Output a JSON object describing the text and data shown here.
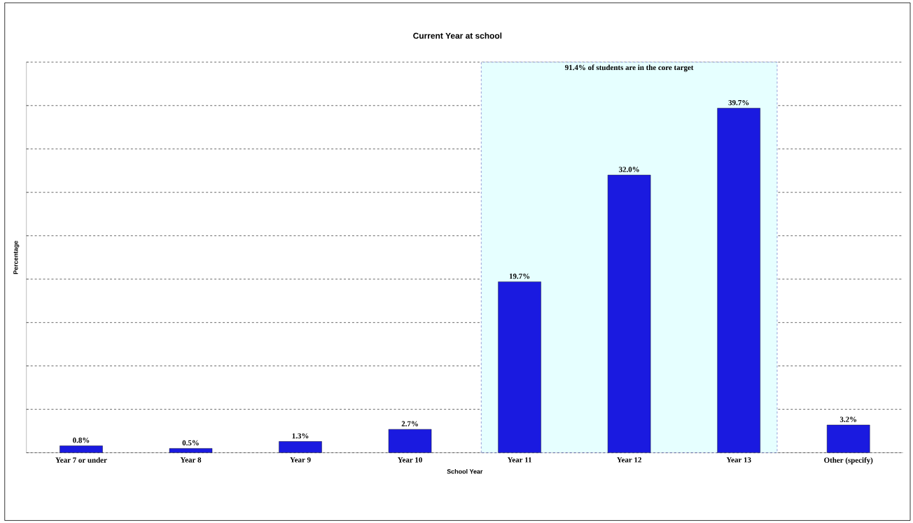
{
  "chart_data": {
    "type": "bar",
    "title": "Current Year at school",
    "xlabel": "School Year",
    "ylabel": "Percentage",
    "categories": [
      "Year 7 or under",
      "Year 8",
      "Year 9",
      "Year 10",
      "Year 11",
      "Year 12",
      "Year 13",
      "Other (specify)"
    ],
    "values": [
      0.8,
      0.5,
      1.3,
      2.7,
      19.7,
      32.0,
      39.7,
      3.2
    ],
    "value_labels": [
      "0.8%",
      "0.5%",
      "1.3%",
      "2.7%",
      "19.7%",
      "32.0%",
      "39.7%",
      "3.2%"
    ],
    "color": "#1a1ae0",
    "ylim": [
      0,
      45
    ],
    "yticks": [
      {
        "value": 0,
        "label": null
      },
      {
        "value": 5,
        "label": null
      },
      {
        "value": 10,
        "label": null
      },
      {
        "value": 15,
        "label": null
      },
      {
        "value": 20,
        "label": null
      },
      {
        "value": 25,
        "label": null
      },
      {
        "value": 30,
        "label": null
      },
      {
        "value": 35,
        "label": null
      },
      {
        "value": 40,
        "label": null
      },
      {
        "value": 45,
        "label": null
      }
    ],
    "tick_labels": "x",
    "grid": "y",
    "bands": [
      {
        "axis": "x",
        "from": "Year 11",
        "to": "Year 13",
        "label": "91.4% of students are in the core target",
        "color": "#e6ffff"
      }
    ]
  }
}
